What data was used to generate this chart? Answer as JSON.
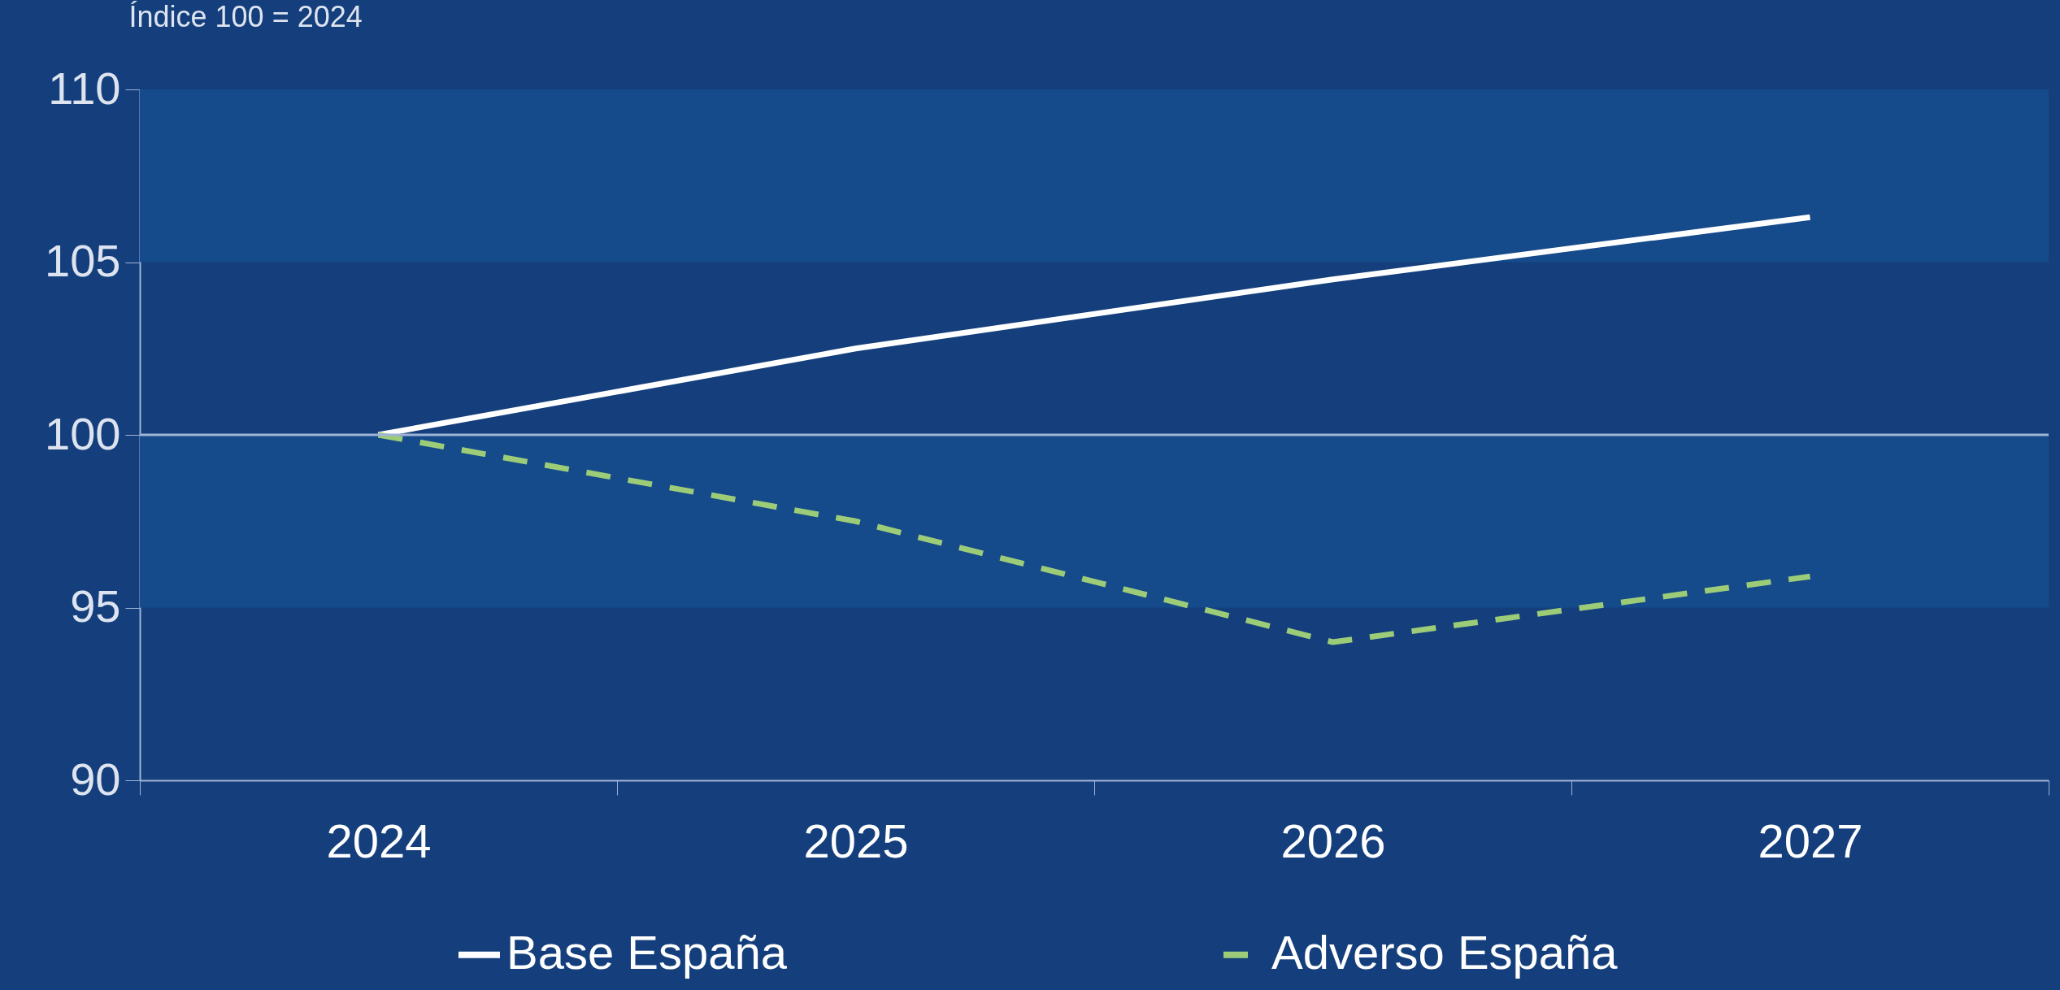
{
  "chart_data": {
    "type": "line",
    "ylabel": "Índice 100 = 2024",
    "categories": [
      "2024",
      "2025",
      "2026",
      "2027"
    ],
    "series": [
      {
        "name": "Base España",
        "color": "#ffffff",
        "line_style": "solid",
        "values": [
          100,
          102.5,
          104.5,
          106.3
        ]
      },
      {
        "name": "Adverso España",
        "color": "#9ccc78",
        "line_style": "dashed",
        "values": [
          100,
          97.5,
          94.0,
          95.9
        ]
      }
    ],
    "ylim": [
      90,
      110
    ],
    "yticks": [
      90,
      95,
      100,
      105,
      110
    ],
    "bands": [
      {
        "axis": "y",
        "from": 105,
        "to": 110,
        "color": "#154a8b"
      },
      {
        "axis": "y",
        "from": 95,
        "to": 100,
        "color": "#154a8b"
      }
    ],
    "ref_lines": [
      {
        "axis": "y",
        "value": 100,
        "color": "#9fb3d6"
      }
    ],
    "grid": false,
    "legend": "bottom",
    "marker": "none"
  }
}
